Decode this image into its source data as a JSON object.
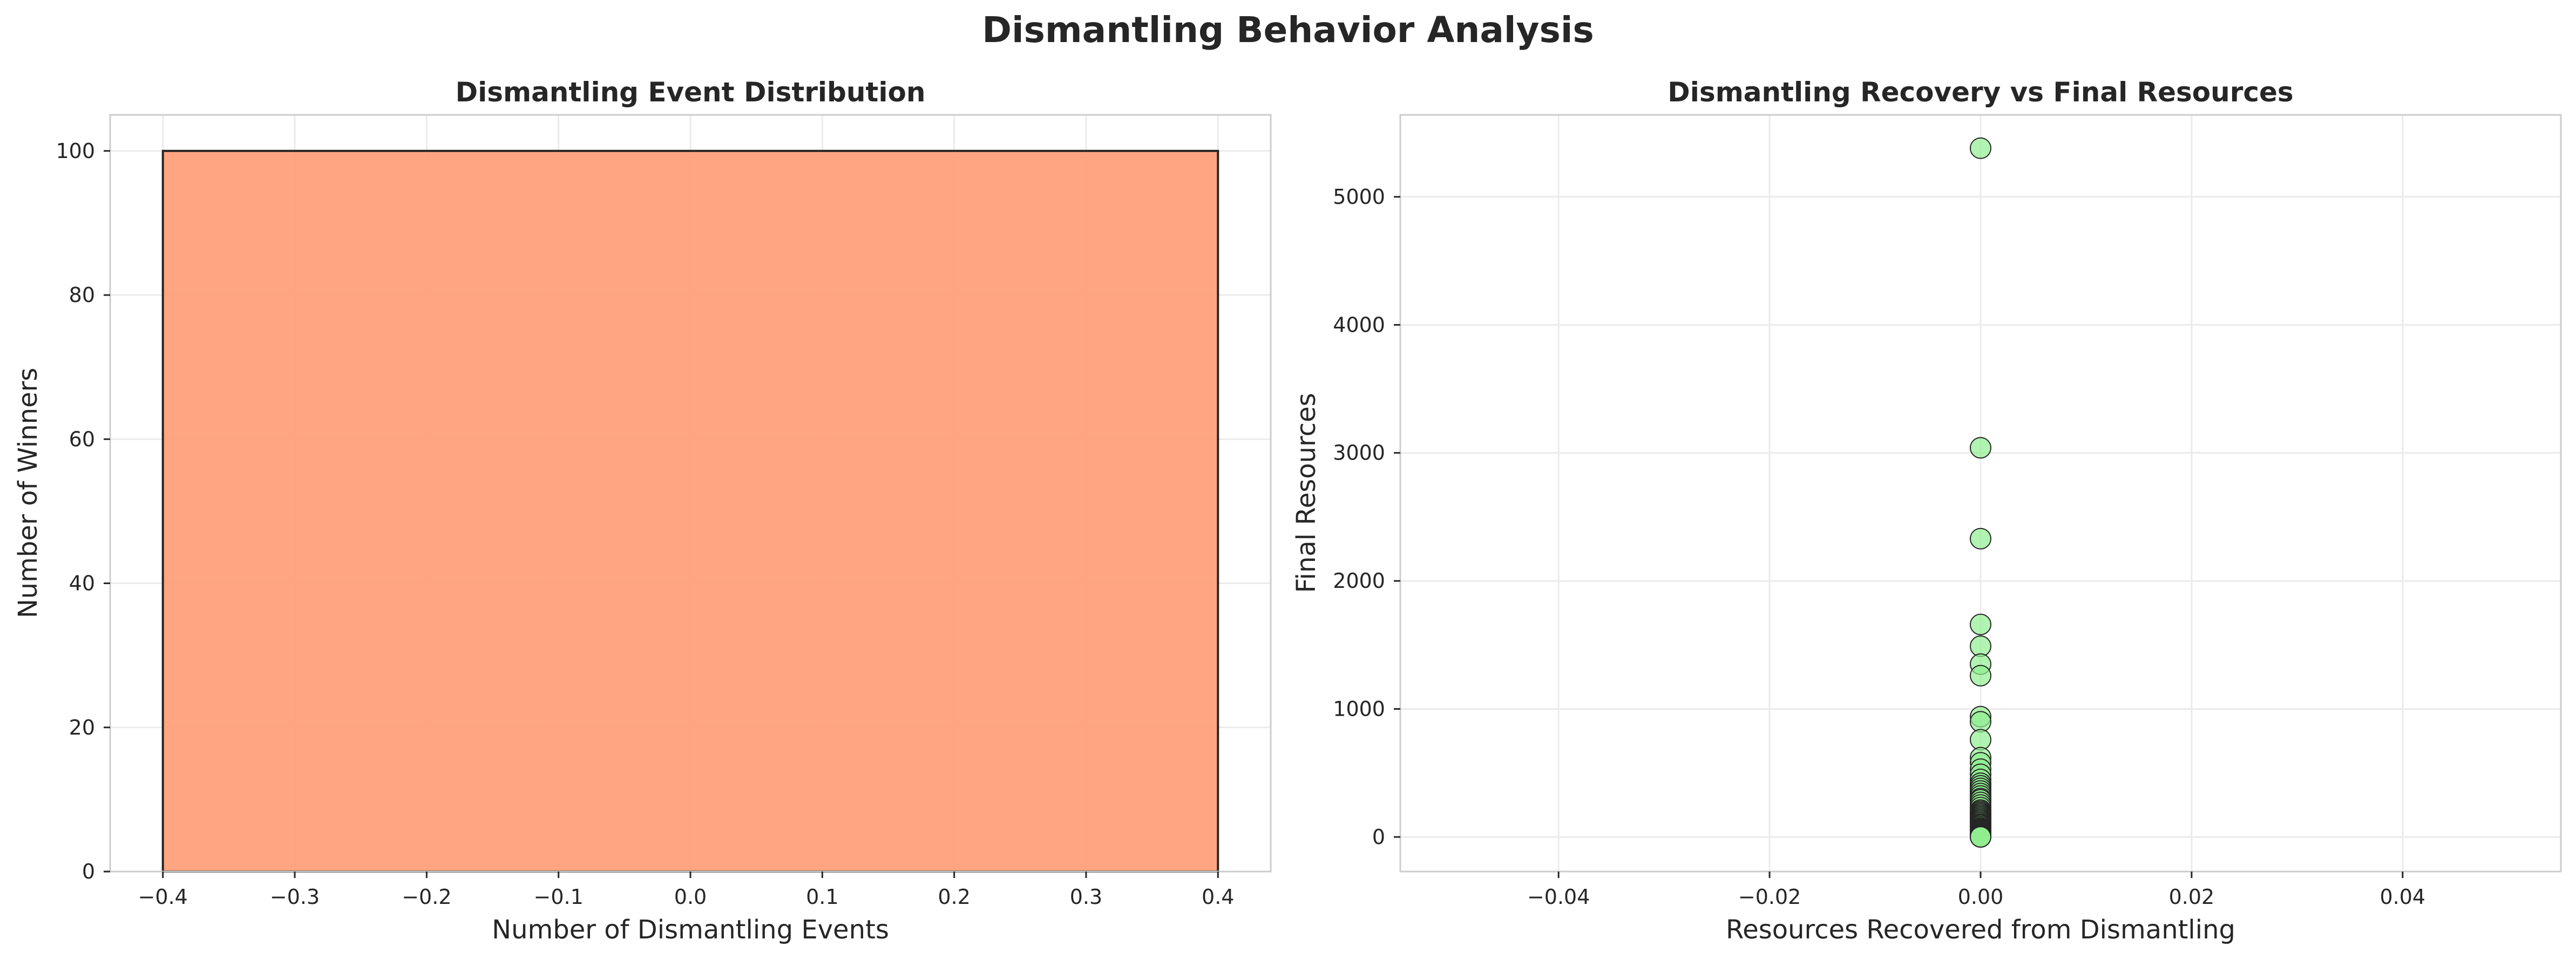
{
  "figure": {
    "title": "Dismantling Behavior Analysis"
  },
  "chart_data": [
    {
      "type": "bar",
      "title": "Dismantling Event Distribution",
      "xlabel": "Number of Dismantling Events",
      "ylabel": "Number of Winners",
      "xlim": [
        -0.44,
        0.44
      ],
      "ylim": [
        0,
        105
      ],
      "xticks": [
        -0.4,
        -0.3,
        -0.2,
        -0.1,
        0.0,
        0.1,
        0.2,
        0.3,
        0.4
      ],
      "xtick_labels": [
        "−0.4",
        "−0.3",
        "−0.2",
        "−0.1",
        "0.0",
        "0.1",
        "0.2",
        "0.3",
        "0.4"
      ],
      "yticks": [
        0,
        20,
        40,
        60,
        80,
        100
      ],
      "ytick_labels": [
        "0",
        "20",
        "40",
        "60",
        "80",
        "100"
      ],
      "bars": [
        {
          "x_start": -0.4,
          "x_end": 0.4,
          "value": 100
        }
      ],
      "colors": {
        "bar_fill": "#ffa07a",
        "bar_edge": "#262626"
      },
      "grid": true
    },
    {
      "type": "scatter",
      "title": "Dismantling Recovery vs Final Resources",
      "xlabel": "Resources Recovered from Dismantling",
      "ylabel": "Final Resources",
      "xlim": [
        -0.055,
        0.055
      ],
      "ylim": [
        -270,
        5640
      ],
      "xticks": [
        -0.04,
        -0.02,
        0.0,
        0.02,
        0.04
      ],
      "xtick_labels": [
        "−0.04",
        "−0.02",
        "0.00",
        "0.02",
        "0.04"
      ],
      "yticks": [
        0,
        1000,
        2000,
        3000,
        4000,
        5000
      ],
      "ytick_labels": [
        "0",
        "1000",
        "2000",
        "3000",
        "4000",
        "5000"
      ],
      "x": [
        0,
        0,
        0,
        0,
        0,
        0,
        0,
        0,
        0,
        0,
        0,
        0,
        0,
        0,
        0,
        0,
        0,
        0,
        0,
        0,
        0,
        0,
        0,
        0,
        0,
        0,
        0,
        0,
        0,
        0,
        0,
        0,
        0,
        0,
        0,
        0,
        0,
        0,
        0,
        0,
        0,
        0,
        0,
        0,
        0,
        0,
        0,
        0,
        0,
        0,
        0,
        0,
        0,
        0,
        0,
        0,
        0,
        0,
        0,
        0
      ],
      "y": [
        5380,
        3040,
        2330,
        1660,
        1490,
        1350,
        1260,
        940,
        900,
        760,
        620,
        580,
        530,
        490,
        450,
        420,
        400,
        380,
        360,
        340,
        320,
        300,
        290,
        270,
        250,
        230,
        210,
        200,
        190,
        180,
        170,
        160,
        150,
        140,
        130,
        120,
        110,
        100,
        95,
        90,
        80,
        70,
        65,
        60,
        55,
        50,
        45,
        40,
        35,
        30,
        25,
        20,
        15,
        12,
        10,
        8,
        6,
        4,
        2,
        0
      ],
      "colors": {
        "marker_fill": "#90ee90",
        "marker_edge": "#262626"
      },
      "grid": true
    }
  ]
}
